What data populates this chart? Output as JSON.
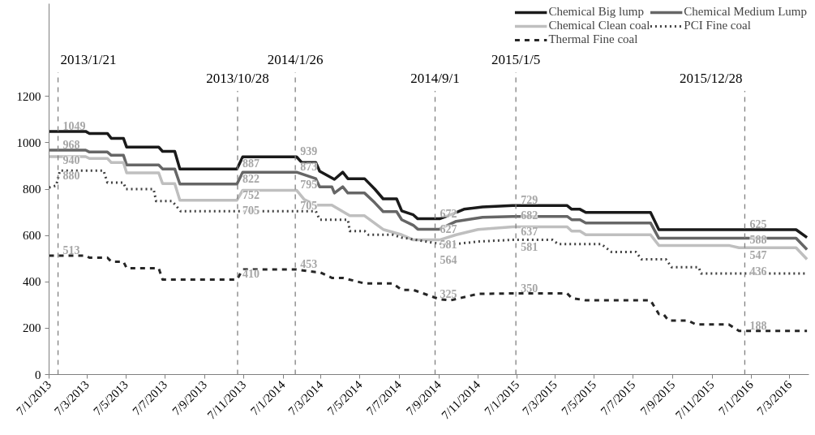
{
  "chart_data": {
    "type": "line",
    "legend": "top right",
    "grid": false,
    "xlim": [
      "2013-01-07",
      "2016-04-06"
    ],
    "xticks": [
      {
        "value": "2013-01-07",
        "label": "7/1/2013"
      },
      {
        "value": "2013-03-07",
        "label": "7/3/2013"
      },
      {
        "value": "2013-05-07",
        "label": "7/5/2013"
      },
      {
        "value": "2013-07-07",
        "label": "7/7/2013"
      },
      {
        "value": "2013-09-07",
        "label": "7/9/2013"
      },
      {
        "value": "2013-11-07",
        "label": "7/11/2013"
      },
      {
        "value": "2014-01-07",
        "label": "7/1/2014"
      },
      {
        "value": "2014-03-07",
        "label": "7/3/2014"
      },
      {
        "value": "2014-05-07",
        "label": "7/5/2014"
      },
      {
        "value": "2014-07-07",
        "label": "7/7/2014"
      },
      {
        "value": "2014-09-07",
        "label": "7/9/2014"
      },
      {
        "value": "2014-11-07",
        "label": "7/11/2014"
      },
      {
        "value": "2015-01-07",
        "label": "7/1/2015"
      },
      {
        "value": "2015-03-07",
        "label": "7/3/2015"
      },
      {
        "value": "2015-05-07",
        "label": "7/5/2015"
      },
      {
        "value": "2015-07-07",
        "label": "7/7/2015"
      },
      {
        "value": "2015-09-07",
        "label": "7/9/2015"
      },
      {
        "value": "2015-11-07",
        "label": "7/11/2015"
      },
      {
        "value": "2016-01-07",
        "label": "7/1/2016"
      },
      {
        "value": "2016-03-07",
        "label": "7/3/2016"
      }
    ],
    "ylim": [
      0,
      1600
    ],
    "yticks": [
      0,
      200,
      400,
      600,
      800,
      1000,
      1200
    ],
    "series": [
      {
        "name": "Chemical Big lump",
        "color": "#1a1a1a",
        "line_style": "solid",
        "x": [
          "2013-01-07",
          "2013-03-05",
          "2013-03-11",
          "2013-04-08",
          "2013-04-14",
          "2013-05-03",
          "2013-05-08",
          "2013-06-27",
          "2013-07-03",
          "2013-07-22",
          "2013-07-30",
          "2013-10-27",
          "2013-11-05",
          "2014-01-28",
          "2014-02-05",
          "2014-02-27",
          "2014-03-05",
          "2014-03-28",
          "2014-04-10",
          "2014-04-18",
          "2014-05-14",
          "2014-05-30",
          "2014-06-12",
          "2014-07-03",
          "2014-07-11",
          "2014-07-29",
          "2014-08-05",
          "2014-09-08",
          "2014-09-25",
          "2014-10-16",
          "2014-11-14",
          "2014-12-31",
          "2015-03-26",
          "2015-04-02",
          "2015-04-15",
          "2015-04-24",
          "2015-08-03",
          "2015-08-16",
          "2016-03-17",
          "2016-04-03"
        ],
        "values": [
          1049,
          1049,
          1040,
          1040,
          1019,
          1019,
          981,
          981,
          963,
          963,
          887,
          887,
          939,
          939,
          915,
          915,
          877,
          842,
          873,
          845,
          845,
          800,
          758,
          758,
          706,
          689,
          672,
          672,
          689,
          713,
          723,
          729,
          729,
          713,
          713,
          699,
          699,
          625,
          625,
          591
        ]
      },
      {
        "name": "Chemical Medium Lump",
        "color": "#666666",
        "line_style": "solid",
        "x": [
          "2013-01-07",
          "2013-03-05",
          "2013-03-11",
          "2013-04-08",
          "2013-04-14",
          "2013-05-03",
          "2013-05-08",
          "2013-06-27",
          "2013-07-03",
          "2013-07-22",
          "2013-07-30",
          "2013-10-27",
          "2013-11-05",
          "2014-01-28",
          "2014-02-27",
          "2014-03-05",
          "2014-03-24",
          "2014-03-28",
          "2014-04-10",
          "2014-04-18",
          "2014-05-14",
          "2014-05-30",
          "2014-06-12",
          "2014-07-03",
          "2014-07-11",
          "2014-07-29",
          "2014-08-05",
          "2014-09-08",
          "2014-10-04",
          "2014-11-14",
          "2014-12-31",
          "2015-03-26",
          "2015-04-02",
          "2015-04-15",
          "2015-04-24",
          "2015-08-03",
          "2015-08-16",
          "2016-03-17",
          "2016-04-03"
        ],
        "values": [
          968,
          968,
          960,
          960,
          946,
          946,
          904,
          904,
          887,
          887,
          822,
          822,
          873,
          873,
          845,
          810,
          810,
          783,
          810,
          783,
          783,
          741,
          703,
          703,
          668,
          644,
          627,
          627,
          661,
          678,
          682,
          682,
          668,
          668,
          654,
          654,
          588,
          588,
          539
        ]
      },
      {
        "name": "Chemical Clean coal",
        "color": "#bfbfbf",
        "line_style": "solid",
        "x": [
          "2013-01-07",
          "2013-03-05",
          "2013-03-11",
          "2013-04-08",
          "2013-04-14",
          "2013-05-03",
          "2013-05-08",
          "2013-06-27",
          "2013-07-03",
          "2013-07-22",
          "2013-07-30",
          "2013-10-27",
          "2013-11-05",
          "2014-01-28",
          "2014-02-09",
          "2014-02-27",
          "2014-03-24",
          "2014-04-21",
          "2014-05-14",
          "2014-06-12",
          "2014-07-11",
          "2014-07-29",
          "2014-09-08",
          "2014-10-04",
          "2014-11-07",
          "2014-12-31",
          "2015-03-26",
          "2015-04-02",
          "2015-04-15",
          "2015-04-24",
          "2015-08-03",
          "2015-08-16",
          "2015-12-03",
          "2015-12-19",
          "2016-03-17",
          "2016-04-03"
        ],
        "values": [
          940,
          940,
          932,
          932,
          915,
          915,
          870,
          870,
          824,
          824,
          752,
          752,
          795,
          795,
          755,
          731,
          731,
          685,
          685,
          626,
          603,
          581,
          581,
          603,
          626,
          637,
          637,
          619,
          619,
          603,
          603,
          557,
          557,
          547,
          547,
          497
        ]
      },
      {
        "name": "PCI Fine coal",
        "color": "#404040",
        "line_style": "dotted",
        "x": [
          "2013-01-07",
          "2013-01-18",
          "2013-01-24",
          "2013-04-02",
          "2013-04-08",
          "2013-05-03",
          "2013-05-07",
          "2013-06-19",
          "2013-06-23",
          "2013-07-18",
          "2013-07-31",
          "2013-10-27",
          "2014-01-28",
          "2014-02-27",
          "2014-03-05",
          "2014-04-18",
          "2014-04-21",
          "2014-05-14",
          "2014-05-20",
          "2014-06-27",
          "2014-07-11",
          "2014-09-08",
          "2014-10-04",
          "2014-11-07",
          "2014-12-31",
          "2015-03-03",
          "2015-03-12",
          "2015-05-18",
          "2015-06-03",
          "2015-07-11",
          "2015-07-20",
          "2015-08-27",
          "2015-09-05",
          "2015-10-17",
          "2015-10-21",
          "2016-04-03"
        ],
        "values": [
          807,
          815,
          880,
          880,
          828,
          828,
          800,
          800,
          748,
          748,
          705,
          705,
          705,
          705,
          668,
          668,
          619,
          619,
          603,
          603,
          591,
          564,
          563,
          574,
          581,
          581,
          563,
          563,
          529,
          529,
          497,
          497,
          463,
          463,
          436,
          436
        ]
      },
      {
        "name": "Thermal Fine coal",
        "color": "#262626",
        "line_style": "dashed",
        "x": [
          "2013-01-07",
          "2013-03-05",
          "2013-03-11",
          "2013-04-08",
          "2013-04-14",
          "2013-05-03",
          "2013-05-08",
          "2013-06-27",
          "2013-07-03",
          "2013-10-27",
          "2013-11-05",
          "2014-01-28",
          "2014-02-27",
          "2014-03-05",
          "2014-03-24",
          "2014-04-10",
          "2014-05-14",
          "2014-06-12",
          "2014-06-27",
          "2014-07-11",
          "2014-07-29",
          "2014-09-08",
          "2014-09-25",
          "2014-11-07",
          "2014-12-31",
          "2015-03-26",
          "2015-04-02",
          "2015-04-24",
          "2015-08-03",
          "2015-08-16",
          "2015-08-23",
          "2015-08-31",
          "2015-09-30",
          "2015-10-13",
          "2015-12-03",
          "2015-12-19",
          "2016-04-03"
        ],
        "values": [
          513,
          513,
          504,
          504,
          487,
          487,
          459,
          459,
          410,
          410,
          453,
          453,
          442,
          442,
          417,
          417,
          393,
          393,
          393,
          365,
          365,
          325,
          320,
          348,
          350,
          350,
          330,
          320,
          320,
          261,
          261,
          233,
          233,
          216,
          216,
          188,
          188
        ]
      }
    ],
    "ref_lines": [
      {
        "axis": "x",
        "value": "2013-01-21",
        "label": "2013/1/21",
        "color": "#808080",
        "line_style": "dashed"
      },
      {
        "axis": "x",
        "value": "2013-10-28",
        "label": "2013/10/28",
        "color": "#808080",
        "line_style": "dashed"
      },
      {
        "axis": "x",
        "value": "2014-01-26",
        "label": "2014/1/26",
        "color": "#808080",
        "line_style": "dashed"
      },
      {
        "axis": "x",
        "value": "2014-09-01",
        "label": "2014/9/1",
        "color": "#808080",
        "line_style": "dashed"
      },
      {
        "axis": "x",
        "value": "2015-01-05",
        "label": "2015/1/5",
        "color": "#808080",
        "line_style": "dashed"
      },
      {
        "axis": "x",
        "value": "2015-12-28",
        "label": "2015/12/28",
        "color": "#808080",
        "line_style": "dashed"
      }
    ],
    "annotations": [
      {
        "text": "1049",
        "x": "2013-01-21",
        "y": 1049
      },
      {
        "text": "968",
        "x": "2013-01-21",
        "y": 968
      },
      {
        "text": "940",
        "x": "2013-01-21",
        "y": 940
      },
      {
        "text": "880",
        "x": "2013-01-21",
        "y": 880
      },
      {
        "text": "513",
        "x": "2013-01-21",
        "y": 513
      },
      {
        "text": "887",
        "x": "2013-10-28",
        "y": 887
      },
      {
        "text": "822",
        "x": "2013-10-28",
        "y": 822
      },
      {
        "text": "752",
        "x": "2013-10-28",
        "y": 752
      },
      {
        "text": "705",
        "x": "2013-10-28",
        "y": 705
      },
      {
        "text": "410",
        "x": "2013-10-28",
        "y": 410
      },
      {
        "text": "939",
        "x": "2014-01-26",
        "y": 939
      },
      {
        "text": "873",
        "x": "2014-01-26",
        "y": 873
      },
      {
        "text": "795",
        "x": "2014-01-26",
        "y": 795
      },
      {
        "text": "705",
        "x": "2014-01-26",
        "y": 705
      },
      {
        "text": "453",
        "x": "2014-01-26",
        "y": 453
      },
      {
        "text": "672",
        "x": "2014-09-01",
        "y": 672
      },
      {
        "text": "627",
        "x": "2014-09-01",
        "y": 627
      },
      {
        "text": "581",
        "x": "2014-09-01",
        "y": 581
      },
      {
        "text": "564",
        "x": "2014-09-01",
        "y": 564
      },
      {
        "text": "325",
        "x": "2014-09-01",
        "y": 325
      },
      {
        "text": "729",
        "x": "2015-01-05",
        "y": 729
      },
      {
        "text": "682",
        "x": "2015-01-05",
        "y": 682
      },
      {
        "text": "637",
        "x": "2015-01-05",
        "y": 637
      },
      {
        "text": "581",
        "x": "2015-01-05",
        "y": 581
      },
      {
        "text": "350",
        "x": "2015-01-05",
        "y": 350
      },
      {
        "text": "625",
        "x": "2015-12-28",
        "y": 625
      },
      {
        "text": "588",
        "x": "2015-12-28",
        "y": 588
      },
      {
        "text": "547",
        "x": "2015-12-28",
        "y": 547
      },
      {
        "text": "436",
        "x": "2015-12-28",
        "y": 436
      },
      {
        "text": "188",
        "x": "2015-12-28",
        "y": 188
      }
    ]
  }
}
